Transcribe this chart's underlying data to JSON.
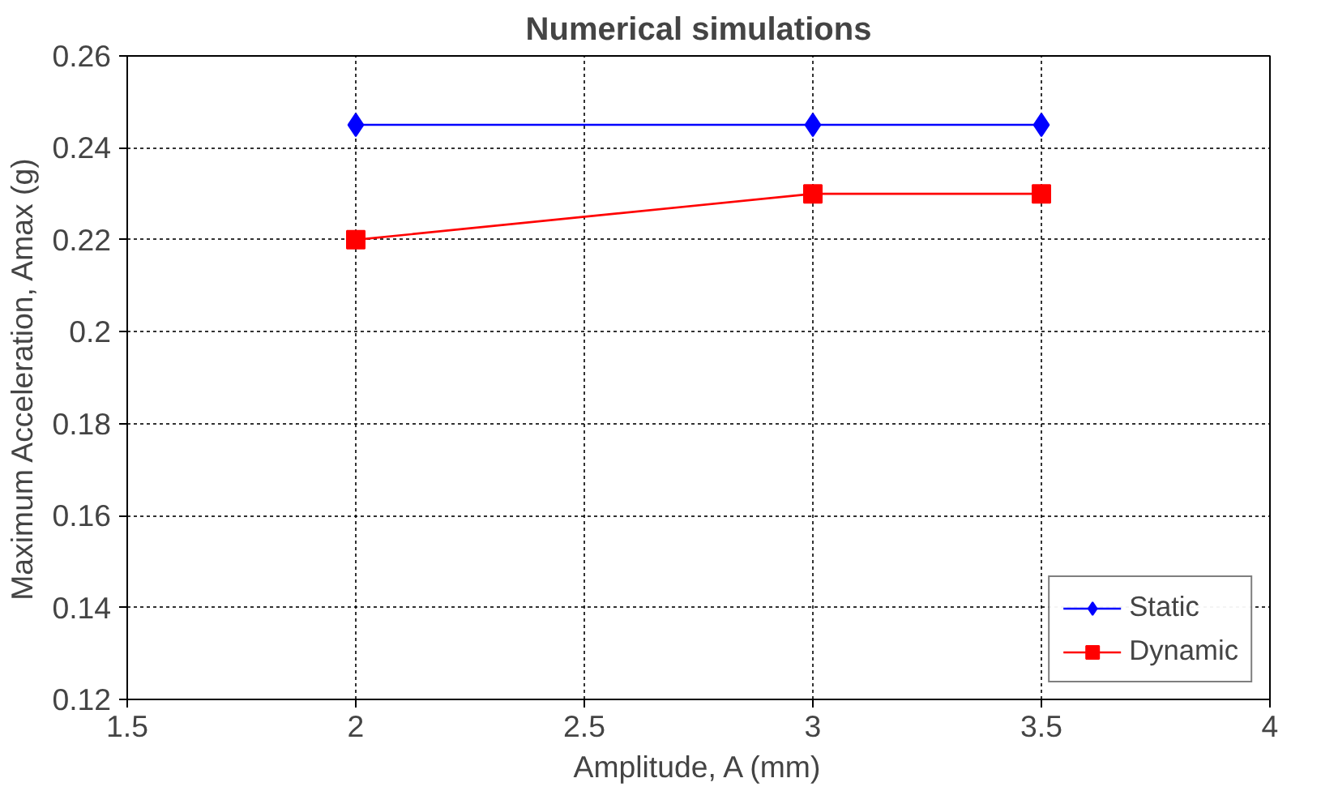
{
  "chart_data": {
    "type": "line",
    "title": "Numerical simulations",
    "xlabel": "Amplitude, A (mm)",
    "ylabel": "Maximum Acceleration, Amax (g)",
    "series": [
      {
        "name": "Static",
        "color": "#0000ff",
        "marker": "diamond",
        "x": [
          2,
          3,
          3.5
        ],
        "values": [
          0.245,
          0.245,
          0.245
        ]
      },
      {
        "name": "Dynamic",
        "color": "#ff0000",
        "marker": "square",
        "x": [
          2,
          3,
          3.5
        ],
        "values": [
          0.22,
          0.23,
          0.23
        ]
      }
    ],
    "xlim": [
      1.5,
      4
    ],
    "xticks": [
      1.5,
      2,
      2.5,
      3,
      3.5,
      4
    ],
    "ylim": [
      0.12,
      0.26
    ],
    "yticks": [
      0.12,
      0.14,
      0.16,
      0.18,
      0.2,
      0.22,
      0.24,
      0.26
    ],
    "grid": true,
    "legend": "bottom right",
    "line_style": "solid"
  }
}
